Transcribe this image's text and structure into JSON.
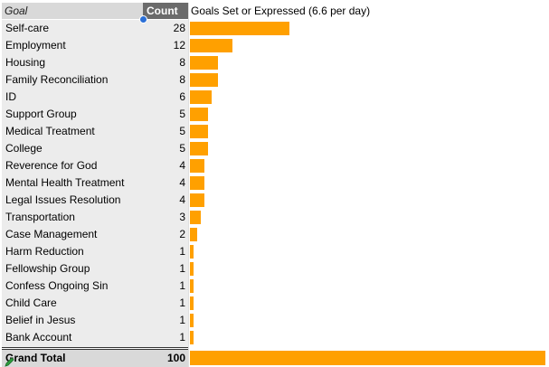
{
  "header": {
    "goal_label": "Goal",
    "count_label": "Count",
    "chart_title": "Goals Set or Expressed (6.6 per day)"
  },
  "colors": {
    "bar": "#ffa000",
    "count_header_bg": "#6b6b6b",
    "label_bg": "#ececec"
  },
  "chart_data": {
    "type": "bar",
    "orientation": "horizontal",
    "title": "Goals Set or Expressed (6.6 per day)",
    "xlabel": "",
    "ylabel": "",
    "categories": [
      "Self-care",
      "Employment",
      "Housing",
      "Family Reconciliation",
      "ID",
      "Support Group",
      "Medical Treatment",
      "College",
      "Reverence for God",
      "Mental Health Treatment",
      "Legal Issues Resolution",
      "Transportation",
      "Case Management",
      "Harm Reduction",
      "Fellowship Group",
      "Confess Ongoing Sin",
      "Child Care",
      "Belief in Jesus",
      "Bank Account"
    ],
    "values": [
      28,
      12,
      8,
      8,
      6,
      5,
      5,
      5,
      4,
      4,
      4,
      3,
      2,
      1,
      1,
      1,
      1,
      1,
      1
    ],
    "total": {
      "label": "Grand Total",
      "value": 100
    }
  }
}
